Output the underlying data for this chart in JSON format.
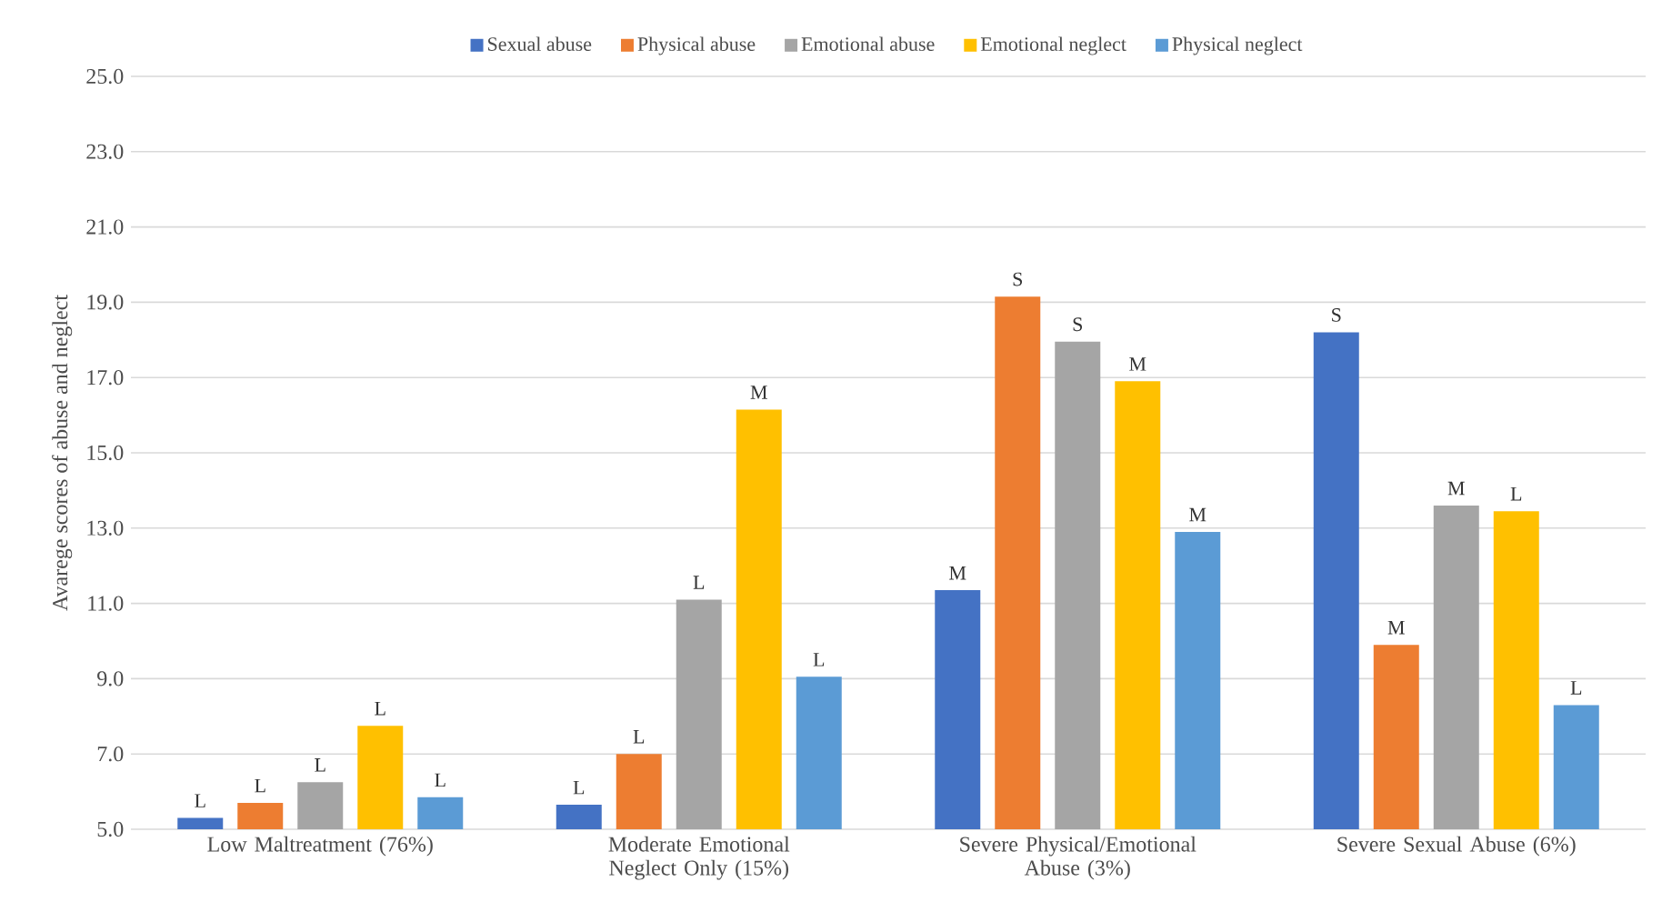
{
  "chart_data": {
    "type": "bar",
    "ylabel": "Avarege scores of abuse and neglect",
    "categories": [
      "Low Maltreatment (76%)",
      "Moderate Emotional Neglect Only (15%)",
      "Severe Physical/Emotional Abuse (3%)",
      "Severe Sexual Abuse (6%)"
    ],
    "series": [
      {
        "name": "Sexual abuse",
        "color": "#4472c4",
        "values": [
          5.3,
          5.65,
          11.35,
          18.2
        ],
        "value_labels": [
          "L",
          "L",
          "M",
          "S"
        ]
      },
      {
        "name": "Physical abuse",
        "color": "#ed7d31",
        "values": [
          5.7,
          7.0,
          19.15,
          9.9
        ],
        "value_labels": [
          "L",
          "L",
          "S",
          "M"
        ]
      },
      {
        "name": "Emotional abuse",
        "color": "#a5a5a5",
        "values": [
          6.25,
          11.1,
          17.95,
          13.6
        ],
        "value_labels": [
          "L",
          "L",
          "S",
          "M"
        ]
      },
      {
        "name": "Emotional neglect",
        "color": "#ffc000",
        "values": [
          7.75,
          16.15,
          16.9,
          13.45
        ],
        "value_labels": [
          "L",
          "M",
          "M",
          "L"
        ]
      },
      {
        "name": "Physical neglect",
        "color": "#5b9bd5",
        "values": [
          5.85,
          9.05,
          12.9,
          8.3
        ],
        "value_labels": [
          "L",
          "L",
          "M",
          "L"
        ]
      }
    ],
    "ylim": [
      5,
      25
    ],
    "yticks": [
      {
        "value": 5,
        "label": "5.0"
      },
      {
        "value": 7,
        "label": "7.0"
      },
      {
        "value": 9,
        "label": "9.0"
      },
      {
        "value": 11,
        "label": "11.0"
      },
      {
        "value": 13,
        "label": "13.0"
      },
      {
        "value": 15,
        "label": "15.0"
      },
      {
        "value": 17,
        "label": "17.0"
      },
      {
        "value": 19,
        "label": "19.0"
      },
      {
        "value": 21,
        "label": "21.0"
      },
      {
        "value": 23,
        "label": "23.0"
      },
      {
        "value": 25,
        "label": "25.0"
      }
    ],
    "grid": "y",
    "legend": "top"
  }
}
